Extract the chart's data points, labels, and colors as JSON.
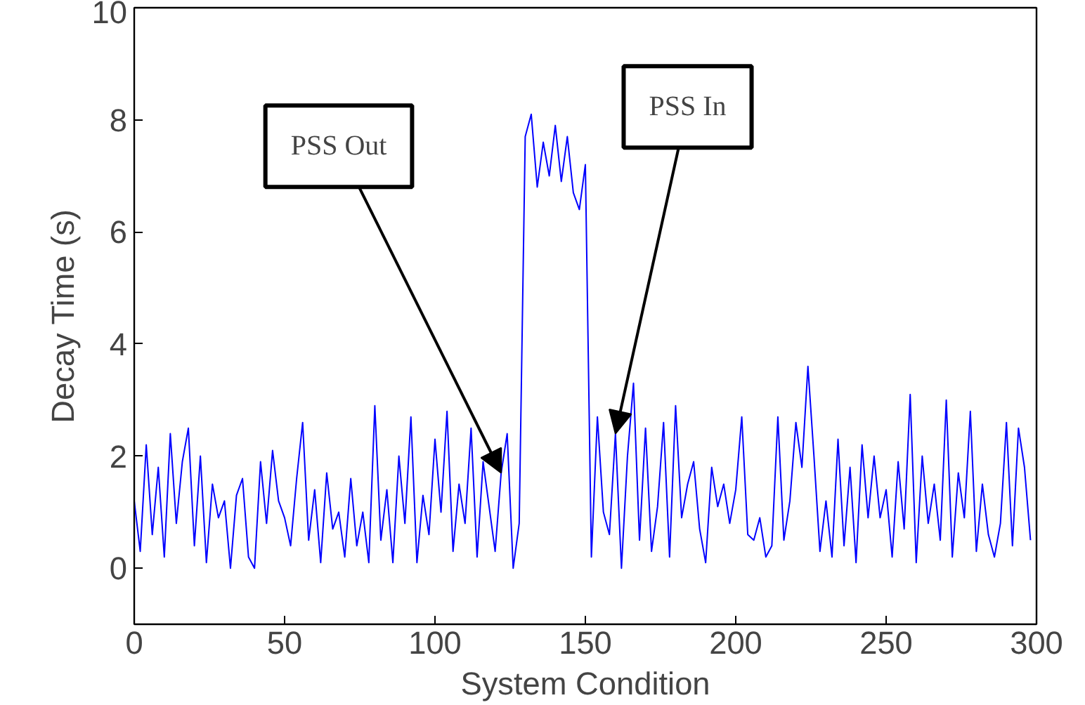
{
  "chart_data": {
    "type": "line",
    "xlabel": "System Condition",
    "ylabel": "Decay Time (s)",
    "x": [
      0,
      2,
      4,
      6,
      8,
      10,
      12,
      14,
      16,
      18,
      20,
      22,
      24,
      26,
      28,
      30,
      32,
      34,
      36,
      38,
      40,
      42,
      44,
      46,
      48,
      50,
      52,
      54,
      56,
      58,
      60,
      62,
      64,
      66,
      68,
      70,
      72,
      74,
      76,
      78,
      80,
      82,
      84,
      86,
      88,
      90,
      92,
      94,
      96,
      98,
      100,
      102,
      104,
      106,
      108,
      110,
      112,
      114,
      116,
      118,
      120,
      122,
      124,
      126,
      128,
      130,
      132,
      134,
      136,
      138,
      140,
      142,
      144,
      146,
      148,
      150,
      152,
      154,
      156,
      158,
      160,
      162,
      164,
      166,
      168,
      170,
      172,
      174,
      176,
      178,
      180,
      182,
      184,
      186,
      188,
      190,
      192,
      194,
      196,
      198,
      200,
      202,
      204,
      206,
      208,
      210,
      212,
      214,
      216,
      218,
      220,
      222,
      224,
      226,
      228,
      230,
      232,
      234,
      236,
      238,
      240,
      242,
      244,
      246,
      248,
      250,
      252,
      254,
      256,
      258,
      260,
      262,
      264,
      266,
      268,
      270,
      272,
      274,
      276,
      278,
      280,
      282,
      284,
      286,
      288,
      290,
      292,
      294,
      296,
      298
    ],
    "series": [
      {
        "color": "#0000ff",
        "values": [
          1.2,
          0.3,
          2.2,
          0.6,
          1.8,
          0.2,
          2.4,
          0.8,
          1.9,
          2.5,
          0.4,
          2.0,
          0.1,
          1.5,
          0.9,
          1.2,
          0.0,
          1.3,
          1.6,
          0.2,
          0.0,
          1.9,
          0.8,
          2.1,
          1.2,
          0.9,
          0.4,
          1.6,
          2.6,
          0.5,
          1.4,
          0.1,
          1.7,
          0.7,
          1.0,
          0.2,
          1.6,
          0.4,
          1.0,
          0.1,
          2.9,
          0.5,
          1.4,
          0.1,
          2.0,
          0.8,
          2.7,
          0.1,
          1.3,
          0.6,
          2.3,
          1.0,
          2.8,
          0.3,
          1.5,
          0.8,
          2.5,
          0.2,
          1.9,
          1.1,
          0.3,
          1.7,
          2.4,
          0.0,
          0.8,
          7.7,
          8.1,
          6.8,
          7.6,
          7.0,
          7.9,
          6.9,
          7.7,
          6.7,
          6.4,
          7.2,
          0.2,
          2.7,
          1.0,
          0.6,
          2.4,
          0.0,
          2.0,
          3.3,
          0.5,
          2.5,
          0.3,
          1.1,
          2.6,
          0.2,
          2.9,
          0.9,
          1.5,
          1.9,
          0.7,
          0.1,
          1.8,
          1.1,
          1.5,
          0.8,
          1.4,
          2.7,
          0.6,
          0.5,
          0.9,
          0.2,
          0.4,
          2.7,
          0.5,
          1.2,
          2.6,
          1.8,
          3.6,
          2.0,
          0.3,
          1.2,
          0.2,
          2.3,
          0.4,
          1.8,
          0.1,
          2.2,
          0.9,
          2.0,
          0.9,
          1.4,
          0.2,
          1.9,
          0.7,
          3.1,
          0.1,
          2.0,
          0.8,
          1.5,
          0.5,
          3.0,
          0.2,
          1.7,
          0.9,
          2.8,
          0.3,
          1.5,
          0.6,
          0.2,
          0.8,
          2.6,
          0.4,
          2.5,
          1.8,
          0.5
        ]
      }
    ],
    "xlim": [
      0,
      300
    ],
    "xticks": [
      0,
      50,
      100,
      150,
      200,
      250,
      300
    ],
    "ylim": [
      -1,
      10
    ],
    "yticks": [
      0,
      2,
      4,
      6,
      8,
      10
    ],
    "grid": false,
    "annotations": [
      {
        "text": "PSS Out",
        "x": 122,
        "y": 1.7
      },
      {
        "text": "PSS In",
        "x": 160,
        "y": 2.4
      }
    ]
  }
}
